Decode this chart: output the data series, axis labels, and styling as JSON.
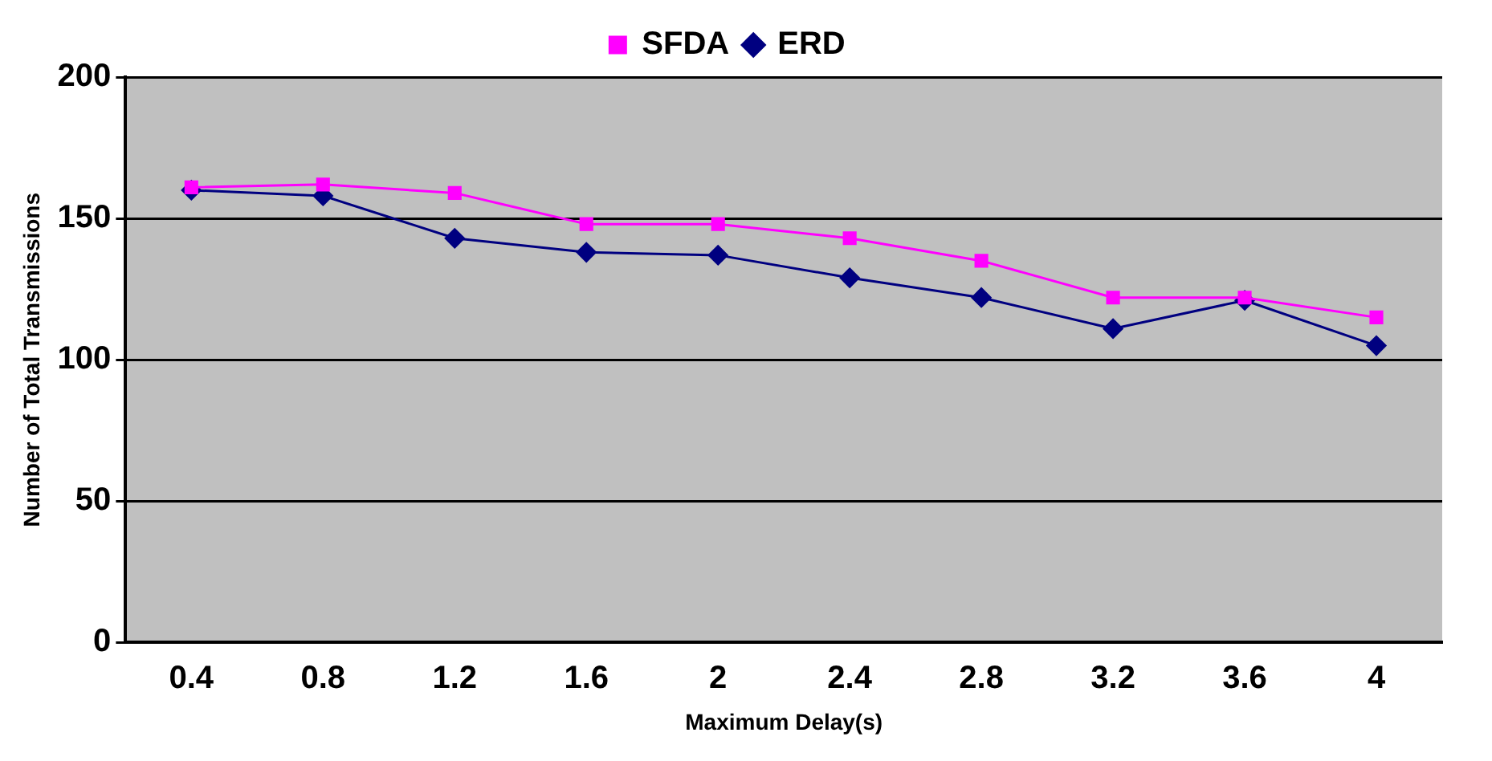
{
  "chart_data": {
    "type": "line",
    "xlabel": "Maximum Delay(s)",
    "ylabel": "Number of Total Transmissions",
    "categories": [
      "0.4",
      "0.8",
      "1.2",
      "1.6",
      "2",
      "2.4",
      "2.8",
      "3.2",
      "3.6",
      "4"
    ],
    "series": [
      {
        "name": "ERD",
        "color": "#000080",
        "marker": "diamond",
        "values": [
          160,
          158,
          143,
          138,
          137,
          129,
          122,
          111,
          121,
          105
        ]
      },
      {
        "name": "SFDA",
        "color": "#ff00ff",
        "marker": "square",
        "values": [
          161,
          162,
          159,
          148,
          148,
          143,
          135,
          122,
          122,
          115
        ]
      }
    ],
    "ylim": [
      0,
      200
    ],
    "yticks": [
      0,
      50,
      100,
      150,
      200
    ],
    "grid": "y",
    "legend": "top",
    "line_style": "solid"
  }
}
